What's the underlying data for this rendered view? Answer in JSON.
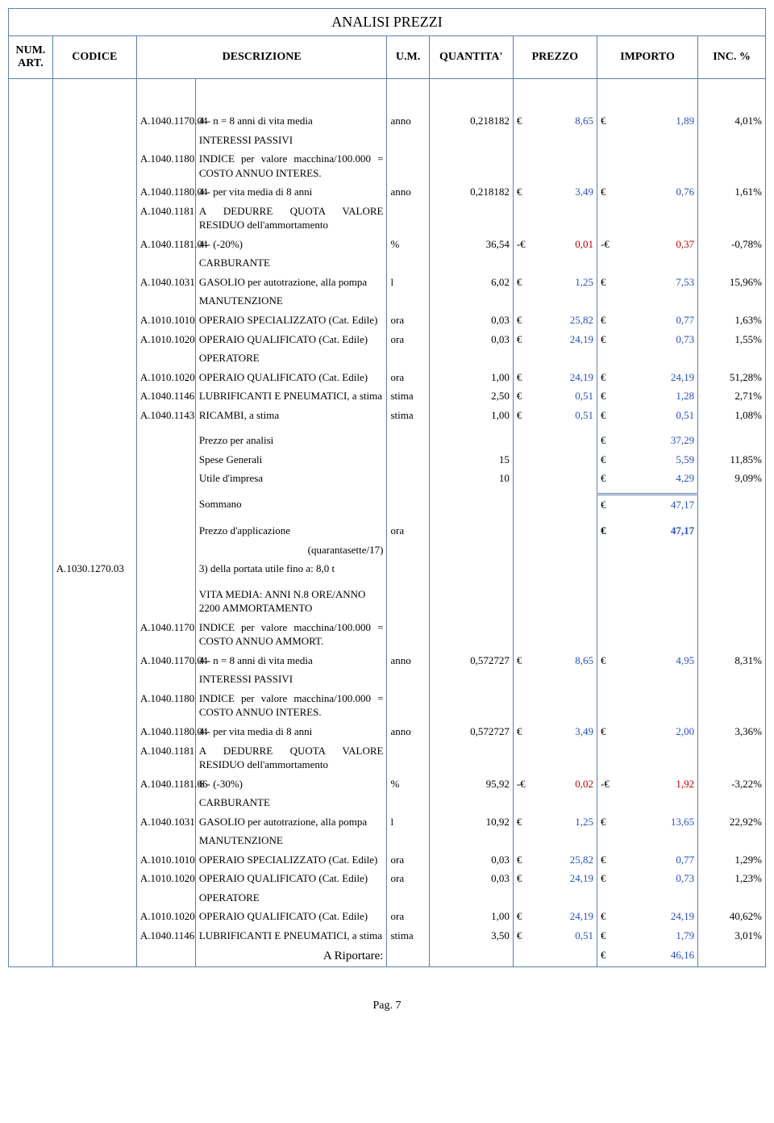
{
  "title": "ANALISI PREZZI",
  "headers": {
    "num": "NUM. ART.",
    "cod": "CODICE",
    "desc": "DESCRIZIONE",
    "um": "U.M.",
    "qty": "QUANTITA'",
    "prz": "PREZZO",
    "imp": "IMPORTO",
    "inc": "INC. %"
  },
  "footer": "Pag. 7",
  "rows": [
    {
      "t": "spacer"
    },
    {
      "cod2": "A.1040.1170.04",
      "desc": "4 - n = 8 anni di vita media",
      "um": "anno",
      "qty": "0,218182",
      "prz": "8,65",
      "imp": "1,89",
      "inc": "4,01%",
      "prz_blue": true,
      "imp_blue": true
    },
    {
      "desc": "INTERESSI PASSIVI"
    },
    {
      "cod2": "A.1040.1180",
      "desc": "INDICE per valore macchina/100.000 = COSTO ANNUO INTERES.",
      "just": true
    },
    {
      "cod2": "A.1040.1180.04",
      "desc": "4 - per vita media di 8 anni",
      "um": "anno",
      "qty": "0,218182",
      "prz": "3,49",
      "imp": "0,76",
      "inc": "1,61%",
      "prz_blue": true,
      "imp_blue": true
    },
    {
      "cod2": "A.1040.1181",
      "desc": "A DEDURRE QUOTA VALORE RESIDUO dell'ammortamento",
      "just": true
    },
    {
      "cod2": "A.1040.1181.04",
      "desc": "4 - (-20%)",
      "um": "%",
      "qty": "36,54",
      "prz": "0,01",
      "imp": "0,37",
      "inc": "-0,78%",
      "prz_neg": true,
      "imp_neg": true
    },
    {
      "desc": "CARBURANTE"
    },
    {
      "cod2": "A.1040.1031",
      "desc": "GASOLIO per autotrazione, alla pompa",
      "um": "l",
      "qty": "6,02",
      "prz": "1,25",
      "imp": "7,53",
      "inc": "15,96%",
      "prz_blue": true,
      "imp_blue": true
    },
    {
      "desc": "MANUTENZIONE"
    },
    {
      "cod2": "A.1010.1010",
      "desc": "OPERAIO SPECIALIZZATO (Cat. Edile)",
      "um": "ora",
      "qty": "0,03",
      "prz": "25,82",
      "imp": "0,77",
      "inc": "1,63%",
      "prz_blue": true,
      "imp_blue": true,
      "just": true
    },
    {
      "cod2": "A.1010.1020",
      "desc": "OPERAIO QUALIFICATO (Cat. Edile)",
      "um": "ora",
      "qty": "0,03",
      "prz": "24,19",
      "imp": "0,73",
      "inc": "1,55%",
      "prz_blue": true,
      "imp_blue": true
    },
    {
      "desc": "OPERATORE"
    },
    {
      "cod2": "A.1010.1020",
      "desc": "OPERAIO QUALIFICATO (Cat. Edile)",
      "um": "ora",
      "qty": "1,00",
      "prz": "24,19",
      "imp": "24,19",
      "inc": "51,28%",
      "prz_blue": true,
      "imp_blue": true
    },
    {
      "cod2": "A.1040.1146",
      "desc": "LUBRIFICANTI E PNEUMATICI, a stima",
      "um": "stima",
      "qty": "2,50",
      "prz": "0,51",
      "imp": "1,28",
      "inc": "2,71%",
      "prz_blue": true,
      "imp_blue": true,
      "just": true
    },
    {
      "cod2": "A.1040.1143",
      "desc": "RICAMBI, a stima",
      "um": "stima",
      "qty": "1,00",
      "prz": "0,51",
      "imp": "0,51",
      "inc": "1,08%",
      "prz_blue": true,
      "imp_blue": true
    },
    {
      "t": "gap"
    },
    {
      "desc": "Prezzo per analisi",
      "imp": "37,29",
      "imp_blue": true
    },
    {
      "desc": "Spese Generali",
      "qty": "15",
      "imp": "5,59",
      "inc": "11,85%",
      "imp_blue": true
    },
    {
      "desc": "Utile d'impresa",
      "qty": "10",
      "imp": "4,29",
      "inc": "9,09%",
      "imp_blue": true
    },
    {
      "t": "gap"
    },
    {
      "desc": "Sommano",
      "imp": "47,17",
      "imp_blue": true,
      "sommano": true
    },
    {
      "t": "gap"
    },
    {
      "desc": "Prezzo d'applicazione",
      "um": "ora",
      "imp": "47,17",
      "imp_blue": true,
      "bold_imp": true
    },
    {
      "desc": "(quarantasette/17)",
      "desc_right": true
    },
    {
      "cod": "A.1030.1270.03",
      "desc": "3) della portata utile fino a: 8,0 t"
    },
    {
      "t": "gap"
    },
    {
      "desc": "VITA MEDIA: ANNI N.8 ORE/ANNO 2200 AMMORTAMENTO"
    },
    {
      "cod2": "A.1040.1170",
      "desc": "INDICE per valore macchina/100.000 = COSTO ANNUO AMMORT.",
      "just": true
    },
    {
      "cod2": "A.1040.1170.04",
      "desc": "4 - n = 8 anni di vita media",
      "um": "anno",
      "qty": "0,572727",
      "prz": "8,65",
      "imp": "4,95",
      "inc": "8,31%",
      "prz_blue": true,
      "imp_blue": true
    },
    {
      "desc": "INTERESSI PASSIVI"
    },
    {
      "cod2": "A.1040.1180",
      "desc": "INDICE per valore macchina/100.000 = COSTO ANNUO INTERES.",
      "just": true
    },
    {
      "cod2": "A.1040.1180.04",
      "desc": "4 - per vita media di 8 anni",
      "um": "anno",
      "qty": "0,572727",
      "prz": "3,49",
      "imp": "2,00",
      "inc": "3,36%",
      "prz_blue": true,
      "imp_blue": true
    },
    {
      "cod2": "A.1040.1181",
      "desc": "A DEDURRE QUOTA VALORE RESIDUO dell'ammortamento",
      "just": true
    },
    {
      "cod2": "A.1040.1181.06",
      "desc": "6 - (-30%)",
      "um": "%",
      "qty": "95,92",
      "prz": "0,02",
      "imp": "1,92",
      "inc": "-3,22%",
      "prz_neg": true,
      "imp_neg": true
    },
    {
      "desc": "CARBURANTE"
    },
    {
      "cod2": "A.1040.1031",
      "desc": "GASOLIO per autotrazione, alla pompa",
      "um": "l",
      "qty": "10,92",
      "prz": "1,25",
      "imp": "13,65",
      "inc": "22,92%",
      "prz_blue": true,
      "imp_blue": true
    },
    {
      "desc": "MANUTENZIONE"
    },
    {
      "cod2": "A.1010.1010",
      "desc": "OPERAIO SPECIALIZZATO (Cat. Edile)",
      "um": "ora",
      "qty": "0,03",
      "prz": "25,82",
      "imp": "0,77",
      "inc": "1,29%",
      "prz_blue": true,
      "imp_blue": true,
      "just": true
    },
    {
      "cod2": "A.1010.1020",
      "desc": "OPERAIO QUALIFICATO (Cat. Edile)",
      "um": "ora",
      "qty": "0,03",
      "prz": "24,19",
      "imp": "0,73",
      "inc": "1,23%",
      "prz_blue": true,
      "imp_blue": true
    },
    {
      "desc": "OPERATORE"
    },
    {
      "cod2": "A.1010.1020",
      "desc": "OPERAIO QUALIFICATO (Cat. Edile)",
      "um": "ora",
      "qty": "1,00",
      "prz": "24,19",
      "imp": "24,19",
      "inc": "40,62%",
      "prz_blue": true,
      "imp_blue": true
    },
    {
      "cod2": "A.1040.1146",
      "desc": "LUBRIFICANTI E PNEUMATICI, a stima",
      "um": "stima",
      "qty": "3,50",
      "prz": "0,51",
      "imp": "1,79",
      "inc": "3,01%",
      "prz_blue": true,
      "imp_blue": true,
      "just": true
    },
    {
      "desc": "A Riportare:",
      "desc_right": true,
      "imp": "46,16",
      "imp_blue": true,
      "riport": true
    }
  ]
}
